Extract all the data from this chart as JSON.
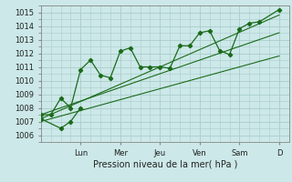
{
  "title": "",
  "xlabel": "Pression niveau de la mer( hPa )",
  "ylabel": "",
  "bg_color": "#cce8e8",
  "grid_color": "#aacccc",
  "line_color": "#1a6b1a",
  "ylim": [
    1005.5,
    1015.5
  ],
  "yticks": [
    1006,
    1007,
    1008,
    1009,
    1010,
    1011,
    1012,
    1013,
    1014,
    1015
  ],
  "day_labels": [
    "Lun",
    "Mer",
    "Jeu",
    "Ven",
    "Sam",
    "D"
  ],
  "day_positions": [
    2.0,
    4.0,
    6.0,
    8.0,
    10.0,
    12.0
  ],
  "xlim": [
    0,
    12.5
  ],
  "series1_x": [
    0.0,
    0.5,
    1.0,
    1.5,
    2.0,
    2.5,
    3.0,
    3.5,
    4.0,
    4.5,
    5.0,
    5.5,
    6.0,
    6.5,
    7.0,
    7.5,
    8.0,
    8.5,
    9.0,
    9.5,
    10.0,
    10.5,
    11.0,
    12.0
  ],
  "series1_y": [
    1007.5,
    1007.5,
    1008.7,
    1008.0,
    1010.8,
    1011.5,
    1010.4,
    1010.2,
    1012.15,
    1012.4,
    1011.0,
    1011.0,
    1011.0,
    1010.9,
    1012.55,
    1012.55,
    1013.5,
    1013.65,
    1012.2,
    1011.9,
    1013.8,
    1014.2,
    1014.3,
    1015.2
  ],
  "series2_x": [
    0.0,
    1.0,
    1.5,
    2.0
  ],
  "series2_y": [
    1007.2,
    1006.5,
    1007.0,
    1008.0
  ],
  "trend1_x": [
    0.0,
    12.0
  ],
  "trend1_y": [
    1007.5,
    1013.5
  ],
  "trend2_x": [
    0.0,
    12.0
  ],
  "trend2_y": [
    1007.2,
    1014.8
  ],
  "trend3_x": [
    0.0,
    12.0
  ],
  "trend3_y": [
    1007.0,
    1011.8
  ]
}
